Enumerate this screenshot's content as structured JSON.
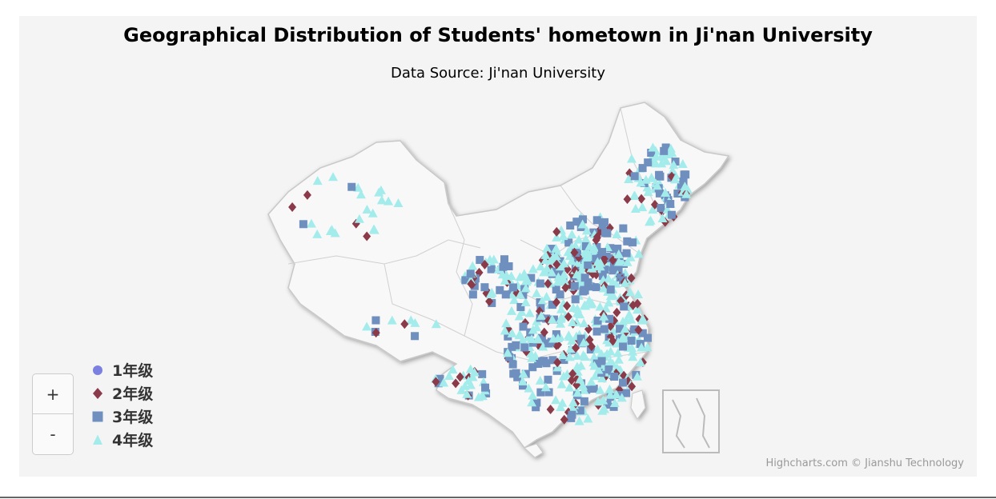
{
  "title": "Geographical Distribution of Students' hometown in Ji'nan University",
  "subtitle": "Data Source: Ji'nan University",
  "credits": "Highcharts.com © Jianshu Technology",
  "zoom": {
    "in_label": "+",
    "out_label": "-"
  },
  "legend": [
    {
      "label": "1年级",
      "shape": "circle",
      "color": "#7b7fe0"
    },
    {
      "label": "2年级",
      "shape": "diamond",
      "color": "#8b3a4a"
    },
    {
      "label": "3年级",
      "shape": "square",
      "color": "#6f8fbf"
    },
    {
      "label": "4年级",
      "shape": "triangle",
      "color": "#a4ecec"
    }
  ]
}
